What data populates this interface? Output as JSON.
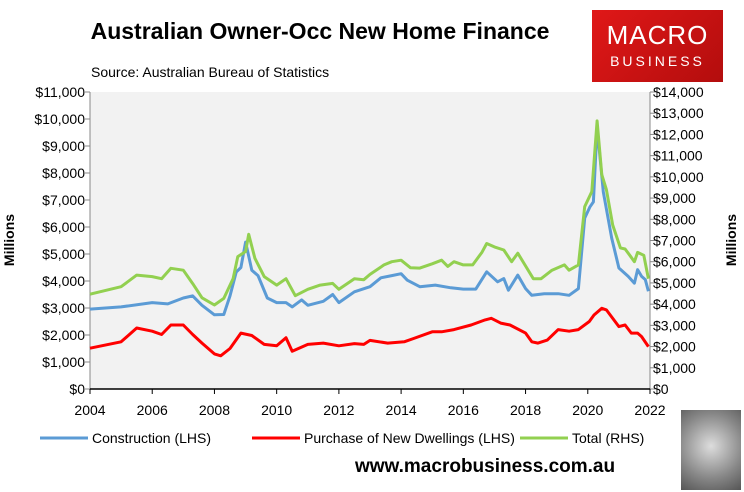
{
  "header": {
    "title": "Australian Owner-Occ New Home Finance",
    "source": "Source: Australian Bureau of Statistics"
  },
  "logo": {
    "line1": "MACRO",
    "line2": "BUSINESS",
    "color": "#d81414"
  },
  "footer": {
    "website": "www.macrobusiness.com.au"
  },
  "chart_data": {
    "type": "line",
    "title": "Australian Owner-Occ New Home Finance",
    "ylabel": "Millions",
    "y2label": "Millions",
    "xlim": [
      2004,
      2022
    ],
    "ylim": [
      0,
      11000
    ],
    "y2lim": [
      0,
      14000
    ],
    "x_ticks": [
      "2004",
      "2006",
      "2008",
      "2010",
      "2012",
      "2014",
      "2016",
      "2018",
      "2020",
      "2022"
    ],
    "y_ticks": [
      "$0",
      "$1,000",
      "$2,000",
      "$3,000",
      "$4,000",
      "$5,000",
      "$6,000",
      "$7,000",
      "$8,000",
      "$9,000",
      "$10,000",
      "$11,000"
    ],
    "y2_ticks": [
      "$0",
      "$1,000",
      "$2,000",
      "$3,000",
      "$4,000",
      "$5,000",
      "$6,000",
      "$7,000",
      "$8,000",
      "$9,000",
      "$10,000",
      "$11,000",
      "$12,000",
      "$13,000",
      "$14,000"
    ],
    "grid": false,
    "legend": "bottom",
    "series": [
      {
        "name": "Construction (LHS)",
        "axis": "left",
        "color": "#5b9bd5",
        "points": [
          [
            2004,
            2960
          ],
          [
            2005,
            3040
          ],
          [
            2006,
            3200
          ],
          [
            2006.5,
            3150
          ],
          [
            2007,
            3370
          ],
          [
            2007.3,
            3450
          ],
          [
            2007.6,
            3100
          ],
          [
            2008,
            2750
          ],
          [
            2008.3,
            2760
          ],
          [
            2008.5,
            3450
          ],
          [
            2008.7,
            4330
          ],
          [
            2008.85,
            4500
          ],
          [
            2009,
            5440
          ],
          [
            2009.2,
            4400
          ],
          [
            2009.4,
            4200
          ],
          [
            2009.7,
            3370
          ],
          [
            2010,
            3200
          ],
          [
            2010.3,
            3200
          ],
          [
            2010.5,
            3040
          ],
          [
            2010.8,
            3300
          ],
          [
            2011,
            3100
          ],
          [
            2011.5,
            3250
          ],
          [
            2011.8,
            3500
          ],
          [
            2012,
            3200
          ],
          [
            2012.5,
            3600
          ],
          [
            2013,
            3790
          ],
          [
            2013.35,
            4120
          ],
          [
            2013.7,
            4200
          ],
          [
            2014,
            4270
          ],
          [
            2014.2,
            4030
          ],
          [
            2014.6,
            3790
          ],
          [
            2015.1,
            3850
          ],
          [
            2015.6,
            3750
          ],
          [
            2016,
            3700
          ],
          [
            2016.4,
            3700
          ],
          [
            2016.75,
            4340
          ],
          [
            2017.1,
            3970
          ],
          [
            2017.3,
            4090
          ],
          [
            2017.45,
            3660
          ],
          [
            2017.75,
            4220
          ],
          [
            2018,
            3720
          ],
          [
            2018.2,
            3470
          ],
          [
            2018.6,
            3530
          ],
          [
            2019.05,
            3530
          ],
          [
            2019.4,
            3470
          ],
          [
            2019.7,
            3720
          ],
          [
            2019.9,
            6330
          ],
          [
            2020.07,
            6750
          ],
          [
            2020.18,
            6930
          ],
          [
            2020.3,
            9710
          ],
          [
            2020.5,
            7300
          ],
          [
            2020.77,
            5590
          ],
          [
            2021,
            4480
          ],
          [
            2021.3,
            4170
          ],
          [
            2021.5,
            3920
          ],
          [
            2021.6,
            4420
          ],
          [
            2021.73,
            4170
          ],
          [
            2021.85,
            4050
          ],
          [
            2021.95,
            3620
          ]
        ]
      },
      {
        "name": "Purchase of New Dwellings (LHS)",
        "axis": "left",
        "color": "#ff0000",
        "points": [
          [
            2004,
            1510
          ],
          [
            2005,
            1750
          ],
          [
            2005.5,
            2260
          ],
          [
            2006,
            2140
          ],
          [
            2006.3,
            2020
          ],
          [
            2006.6,
            2370
          ],
          [
            2007,
            2370
          ],
          [
            2007.3,
            2020
          ],
          [
            2007.6,
            1700
          ],
          [
            2008,
            1300
          ],
          [
            2008.2,
            1230
          ],
          [
            2008.5,
            1500
          ],
          [
            2008.85,
            2070
          ],
          [
            2009.2,
            1980
          ],
          [
            2009.6,
            1650
          ],
          [
            2010,
            1600
          ],
          [
            2010.3,
            1900
          ],
          [
            2010.5,
            1400
          ],
          [
            2011,
            1650
          ],
          [
            2011.5,
            1700
          ],
          [
            2012,
            1600
          ],
          [
            2012.5,
            1680
          ],
          [
            2012.8,
            1650
          ],
          [
            2013,
            1800
          ],
          [
            2013.57,
            1700
          ],
          [
            2014.1,
            1750
          ],
          [
            2014.4,
            1870
          ],
          [
            2015,
            2120
          ],
          [
            2015.3,
            2120
          ],
          [
            2015.7,
            2200
          ],
          [
            2016.25,
            2370
          ],
          [
            2016.7,
            2560
          ],
          [
            2016.9,
            2620
          ],
          [
            2017.2,
            2440
          ],
          [
            2017.5,
            2370
          ],
          [
            2018,
            2070
          ],
          [
            2018.2,
            1750
          ],
          [
            2018.4,
            1700
          ],
          [
            2018.7,
            1810
          ],
          [
            2019.05,
            2200
          ],
          [
            2019.4,
            2140
          ],
          [
            2019.7,
            2200
          ],
          [
            2020.05,
            2500
          ],
          [
            2020.2,
            2740
          ],
          [
            2020.45,
            2990
          ],
          [
            2020.6,
            2930
          ],
          [
            2021,
            2310
          ],
          [
            2021.2,
            2370
          ],
          [
            2021.4,
            2070
          ],
          [
            2021.6,
            2070
          ],
          [
            2021.73,
            1940
          ],
          [
            2021.95,
            1570
          ]
        ]
      },
      {
        "name": "Total (RHS)",
        "axis": "right",
        "color": "#92d050",
        "points": [
          [
            2004,
            4470
          ],
          [
            2005,
            4820
          ],
          [
            2005.5,
            5370
          ],
          [
            2006,
            5300
          ],
          [
            2006.3,
            5200
          ],
          [
            2006.6,
            5690
          ],
          [
            2007,
            5600
          ],
          [
            2007.3,
            4970
          ],
          [
            2007.6,
            4300
          ],
          [
            2008,
            3960
          ],
          [
            2008.3,
            4270
          ],
          [
            2008.6,
            5200
          ],
          [
            2008.75,
            6240
          ],
          [
            2009,
            6480
          ],
          [
            2009.1,
            7290
          ],
          [
            2009.3,
            6160
          ],
          [
            2009.6,
            5300
          ],
          [
            2010,
            4900
          ],
          [
            2010.3,
            5200
          ],
          [
            2010.6,
            4400
          ],
          [
            2011,
            4700
          ],
          [
            2011.4,
            4900
          ],
          [
            2011.8,
            4980
          ],
          [
            2012,
            4700
          ],
          [
            2012.5,
            5200
          ],
          [
            2012.8,
            5150
          ],
          [
            2013,
            5400
          ],
          [
            2013.45,
            5850
          ],
          [
            2013.7,
            6000
          ],
          [
            2014,
            6070
          ],
          [
            2014.3,
            5720
          ],
          [
            2014.6,
            5700
          ],
          [
            2015,
            5900
          ],
          [
            2015.3,
            6070
          ],
          [
            2015.5,
            5780
          ],
          [
            2015.7,
            6000
          ],
          [
            2016,
            5850
          ],
          [
            2016.3,
            5850
          ],
          [
            2016.6,
            6450
          ],
          [
            2016.75,
            6860
          ],
          [
            2017,
            6700
          ],
          [
            2017.3,
            6550
          ],
          [
            2017.55,
            6000
          ],
          [
            2017.75,
            6400
          ],
          [
            2018,
            5800
          ],
          [
            2018.25,
            5200
          ],
          [
            2018.5,
            5200
          ],
          [
            2018.85,
            5600
          ],
          [
            2019.25,
            5850
          ],
          [
            2019.4,
            5600
          ],
          [
            2019.7,
            5850
          ],
          [
            2019.9,
            8600
          ],
          [
            2020.13,
            9300
          ],
          [
            2020.3,
            12640
          ],
          [
            2020.45,
            10100
          ],
          [
            2020.6,
            9400
          ],
          [
            2020.8,
            7730
          ],
          [
            2021.05,
            6650
          ],
          [
            2021.2,
            6600
          ],
          [
            2021.35,
            6300
          ],
          [
            2021.5,
            6000
          ],
          [
            2021.6,
            6440
          ],
          [
            2021.8,
            6300
          ],
          [
            2021.95,
            5200
          ]
        ]
      }
    ]
  }
}
